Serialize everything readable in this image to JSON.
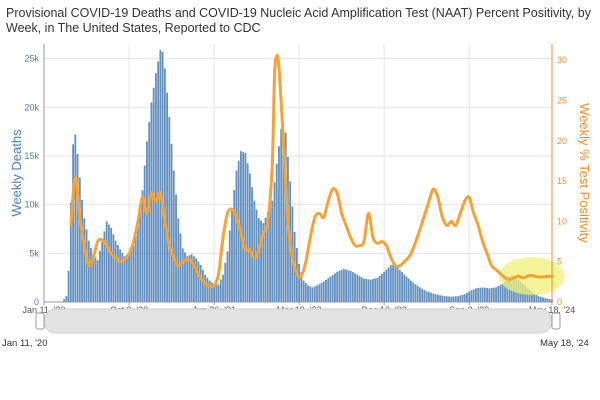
{
  "chart_data": {
    "type": "bar+line",
    "title": "Provisional COVID-19 Deaths and COVID-19 Nucleic Acid Amplification Test (NAAT) Percent Positivity, by Week, in The United States, Reported to CDC",
    "ylabel_left": "Weekly Deaths",
    "ylabel_right": "Weekly % Test Positivity",
    "ylim_left": [
      0,
      26500
    ],
    "yticks_left": [
      "0",
      "5k",
      "10k",
      "15k",
      "20k",
      "25k"
    ],
    "yticks_left_values": [
      0,
      5000,
      10000,
      15000,
      20000,
      25000
    ],
    "ylim_right": [
      0,
      32
    ],
    "yticks_right": [
      "0",
      "5",
      "10",
      "15",
      "20",
      "25",
      "30"
    ],
    "yticks_right_values": [
      0,
      5,
      10,
      15,
      20,
      25,
      30
    ],
    "x_range": [
      "2020-01-11",
      "2024-05-18"
    ],
    "x_ticks": [
      {
        "label": "Jan 11, '20",
        "date": "2020-01-11"
      },
      {
        "label": "Oct 3, '20",
        "date": "2020-10-03"
      },
      {
        "label": "Jun 26, '21",
        "date": "2021-06-26"
      },
      {
        "label": "Mar 19, '22",
        "date": "2022-03-19"
      },
      {
        "label": "Dec 10, '22",
        "date": "2022-12-10"
      },
      {
        "label": "Sep 2, '23",
        "date": "2023-09-02"
      },
      {
        "label": "May 18, '24",
        "date": "2024-05-18"
      }
    ],
    "grid": true,
    "series": [
      {
        "name": "Weekly Deaths",
        "kind": "bar",
        "color": "#4a7fb5",
        "points": [
          [
            "2020-01-11",
            0
          ],
          [
            "2020-03-07",
            0
          ],
          [
            "2020-03-21",
            600
          ],
          [
            "2020-03-28",
            3200
          ],
          [
            "2020-04-04",
            10200
          ],
          [
            "2020-04-11",
            16200
          ],
          [
            "2020-04-18",
            17200
          ],
          [
            "2020-04-25",
            15200
          ],
          [
            "2020-05-02",
            12800
          ],
          [
            "2020-05-09",
            10500
          ],
          [
            "2020-05-16",
            8600
          ],
          [
            "2020-05-30",
            6300
          ],
          [
            "2020-06-13",
            4800
          ],
          [
            "2020-06-27",
            4300
          ],
          [
            "2020-07-11",
            6200
          ],
          [
            "2020-07-25",
            8300
          ],
          [
            "2020-08-08",
            7600
          ],
          [
            "2020-08-22",
            6300
          ],
          [
            "2020-09-05",
            5400
          ],
          [
            "2020-09-19",
            4700
          ],
          [
            "2020-10-03",
            5000
          ],
          [
            "2020-10-17",
            5800
          ],
          [
            "2020-10-31",
            7800
          ],
          [
            "2020-11-14",
            11500
          ],
          [
            "2020-11-28",
            16500
          ],
          [
            "2020-12-12",
            20500
          ],
          [
            "2020-12-26",
            23500
          ],
          [
            "2021-01-09",
            25900
          ],
          [
            "2021-01-16",
            25700
          ],
          [
            "2021-01-23",
            24000
          ],
          [
            "2021-02-06",
            19000
          ],
          [
            "2021-02-20",
            13500
          ],
          [
            "2021-03-06",
            8600
          ],
          [
            "2021-03-20",
            5500
          ],
          [
            "2021-04-03",
            4700
          ],
          [
            "2021-04-17",
            4900
          ],
          [
            "2021-05-01",
            4500
          ],
          [
            "2021-05-15",
            3800
          ],
          [
            "2021-05-29",
            2800
          ],
          [
            "2021-06-12",
            2200
          ],
          [
            "2021-06-26",
            1800
          ],
          [
            "2021-07-10",
            1800
          ],
          [
            "2021-07-24",
            2800
          ],
          [
            "2021-08-07",
            5200
          ],
          [
            "2021-08-21",
            9500
          ],
          [
            "2021-09-04",
            13500
          ],
          [
            "2021-09-18",
            15500
          ],
          [
            "2021-10-02",
            15300
          ],
          [
            "2021-10-16",
            13200
          ],
          [
            "2021-10-30",
            10400
          ],
          [
            "2021-11-13",
            8600
          ],
          [
            "2021-11-27",
            8100
          ],
          [
            "2021-12-11",
            9200
          ],
          [
            "2021-12-25",
            10400
          ],
          [
            "2022-01-08",
            14200
          ],
          [
            "2022-01-22",
            17800
          ],
          [
            "2022-02-05",
            17400
          ],
          [
            "2022-02-19",
            12400
          ],
          [
            "2022-03-05",
            7200
          ],
          [
            "2022-03-19",
            3900
          ],
          [
            "2022-04-02",
            2200
          ],
          [
            "2022-04-16",
            1700
          ],
          [
            "2022-04-30",
            1500
          ],
          [
            "2022-05-14",
            1700
          ],
          [
            "2022-06-04",
            2100
          ],
          [
            "2022-06-25",
            2600
          ],
          [
            "2022-07-16",
            3100
          ],
          [
            "2022-08-06",
            3400
          ],
          [
            "2022-08-27",
            3200
          ],
          [
            "2022-09-17",
            2800
          ],
          [
            "2022-10-08",
            2400
          ],
          [
            "2022-10-29",
            2300
          ],
          [
            "2022-11-19",
            2500
          ],
          [
            "2022-12-10",
            3100
          ],
          [
            "2022-12-31",
            3800
          ],
          [
            "2023-01-14",
            3900
          ],
          [
            "2023-01-28",
            3300
          ],
          [
            "2023-02-18",
            2600
          ],
          [
            "2023-03-11",
            2000
          ],
          [
            "2023-04-01",
            1500
          ],
          [
            "2023-04-22",
            1100
          ],
          [
            "2023-05-20",
            800
          ],
          [
            "2023-06-17",
            600
          ],
          [
            "2023-07-08",
            550
          ],
          [
            "2023-07-29",
            600
          ],
          [
            "2023-08-19",
            800
          ],
          [
            "2023-09-02",
            1100
          ],
          [
            "2023-09-23",
            1400
          ],
          [
            "2023-10-14",
            1500
          ],
          [
            "2023-11-04",
            1400
          ],
          [
            "2023-11-25",
            1500
          ],
          [
            "2023-12-16",
            1900
          ],
          [
            "2024-01-06",
            2600
          ],
          [
            "2024-01-20",
            2700
          ],
          [
            "2024-02-03",
            2300
          ],
          [
            "2024-02-24",
            1700
          ],
          [
            "2024-03-16",
            1000
          ],
          [
            "2024-04-06",
            600
          ],
          [
            "2024-04-27",
            400
          ],
          [
            "2024-05-18",
            250
          ]
        ]
      },
      {
        "name": "Weekly % Test Positivity",
        "kind": "line",
        "color": "#f7a235",
        "points": [
          [
            "2020-04-04",
            9.5
          ],
          [
            "2020-04-18",
            15.5
          ],
          [
            "2020-05-02",
            10.5
          ],
          [
            "2020-05-16",
            7.0
          ],
          [
            "2020-05-30",
            4.5
          ],
          [
            "2020-06-13",
            5.5
          ],
          [
            "2020-06-27",
            7.5
          ],
          [
            "2020-07-11",
            7.7
          ],
          [
            "2020-07-25",
            7.0
          ],
          [
            "2020-08-08",
            6.0
          ],
          [
            "2020-08-22",
            5.5
          ],
          [
            "2020-09-05",
            5.0
          ],
          [
            "2020-09-19",
            5.3
          ],
          [
            "2020-10-03",
            6.0
          ],
          [
            "2020-10-17",
            7.5
          ],
          [
            "2020-10-31",
            10.0
          ],
          [
            "2020-11-14",
            13.0
          ],
          [
            "2020-11-28",
            11.0
          ],
          [
            "2020-12-12",
            13.5
          ],
          [
            "2020-12-26",
            12.5
          ],
          [
            "2021-01-09",
            13.5
          ],
          [
            "2021-01-23",
            10.0
          ],
          [
            "2021-02-06",
            7.0
          ],
          [
            "2021-02-20",
            5.5
          ],
          [
            "2021-03-06",
            4.5
          ],
          [
            "2021-03-20",
            5.0
          ],
          [
            "2021-04-03",
            5.3
          ],
          [
            "2021-04-17",
            5.0
          ],
          [
            "2021-05-01",
            4.0
          ],
          [
            "2021-05-15",
            3.0
          ],
          [
            "2021-05-29",
            2.3
          ],
          [
            "2021-06-12",
            2.0
          ],
          [
            "2021-06-26",
            2.0
          ],
          [
            "2021-07-10",
            3.5
          ],
          [
            "2021-07-24",
            8.0
          ],
          [
            "2021-08-07",
            11.0
          ],
          [
            "2021-08-21",
            11.5
          ],
          [
            "2021-09-04",
            10.5
          ],
          [
            "2021-09-18",
            8.5
          ],
          [
            "2021-10-02",
            6.5
          ],
          [
            "2021-10-16",
            6.5
          ],
          [
            "2021-10-30",
            5.5
          ],
          [
            "2021-11-13",
            6.5
          ],
          [
            "2021-11-27",
            8.5
          ],
          [
            "2021-12-11",
            10.0
          ],
          [
            "2021-12-25",
            17.0
          ],
          [
            "2022-01-01",
            28.0
          ],
          [
            "2022-01-08",
            30.5
          ],
          [
            "2022-01-15",
            29.0
          ],
          [
            "2022-01-29",
            20.0
          ],
          [
            "2022-02-12",
            10.0
          ],
          [
            "2022-02-26",
            5.5
          ],
          [
            "2022-03-12",
            3.5
          ],
          [
            "2022-03-26",
            3.2
          ],
          [
            "2022-04-09",
            5.0
          ],
          [
            "2022-04-23",
            8.0
          ],
          [
            "2022-05-07",
            10.5
          ],
          [
            "2022-05-21",
            11.0
          ],
          [
            "2022-06-04",
            10.5
          ],
          [
            "2022-06-18",
            12.5
          ],
          [
            "2022-07-02",
            14.0
          ],
          [
            "2022-07-16",
            13.5
          ],
          [
            "2022-07-30",
            11.0
          ],
          [
            "2022-08-13",
            9.5
          ],
          [
            "2022-08-27",
            8.0
          ],
          [
            "2022-09-10",
            7.0
          ],
          [
            "2022-09-24",
            7.0
          ],
          [
            "2022-10-08",
            7.5
          ],
          [
            "2022-10-22",
            11.0
          ],
          [
            "2022-11-05",
            8.0
          ],
          [
            "2022-11-19",
            7.3
          ],
          [
            "2022-12-03",
            7.5
          ],
          [
            "2022-12-17",
            7.0
          ],
          [
            "2022-12-31",
            5.5
          ],
          [
            "2023-01-14",
            4.5
          ],
          [
            "2023-01-28",
            4.5
          ],
          [
            "2023-02-11",
            5.0
          ],
          [
            "2023-03-04",
            6.0
          ],
          [
            "2023-04-01",
            9.0
          ],
          [
            "2023-04-29",
            12.5
          ],
          [
            "2023-05-13",
            14.0
          ],
          [
            "2023-05-27",
            13.0
          ],
          [
            "2023-06-10",
            10.5
          ],
          [
            "2023-06-24",
            9.5
          ],
          [
            "2023-07-08",
            10.0
          ],
          [
            "2023-07-22",
            9.5
          ],
          [
            "2023-08-05",
            11.0
          ],
          [
            "2023-08-19",
            12.5
          ],
          [
            "2023-09-02",
            13.0
          ],
          [
            "2023-09-16",
            11.0
          ],
          [
            "2023-09-30",
            9.5
          ],
          [
            "2023-10-14",
            7.5
          ],
          [
            "2023-10-28",
            6.0
          ],
          [
            "2023-11-11",
            4.5
          ],
          [
            "2023-11-25",
            4.0
          ],
          [
            "2023-12-09",
            3.5
          ],
          [
            "2023-12-23",
            3.0
          ],
          [
            "2024-01-06",
            2.8
          ],
          [
            "2024-01-20",
            3.0
          ],
          [
            "2024-02-03",
            3.2
          ],
          [
            "2024-02-17",
            3.0
          ],
          [
            "2024-03-02",
            3.2
          ],
          [
            "2024-03-16",
            3.3
          ],
          [
            "2024-04-06",
            3.1
          ],
          [
            "2024-05-18",
            3.2
          ]
        ]
      }
    ],
    "highlight": {
      "region": "final weeks",
      "color": "#f0f07a"
    }
  },
  "navigator": {
    "start_label": "Jan 11, '20",
    "end_label": "May 18, '24"
  }
}
